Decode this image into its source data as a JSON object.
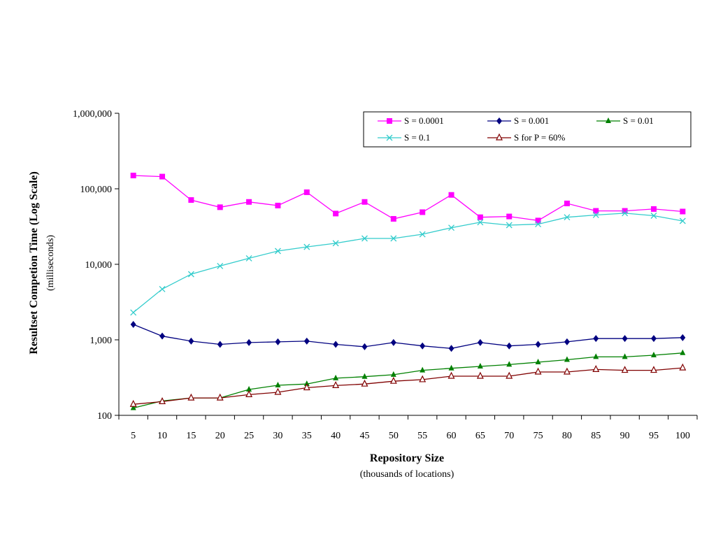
{
  "chart_data": {
    "type": "line",
    "title": "",
    "xlabel": "Repository Size",
    "xlabel_sub": "(thousands of locations)",
    "ylabel": "Resultset Competion Time (Log Scale)",
    "ylabel_sub": "(milliseconds)",
    "y_scale": "log",
    "ylim": [
      100,
      1000000
    ],
    "y_ticks": [
      100,
      1000,
      10000,
      100000,
      1000000
    ],
    "y_tick_labels": [
      "100",
      "1,000",
      "10,000",
      "100,000",
      "1,000,000"
    ],
    "categories": [
      "5",
      "10",
      "15",
      "20",
      "25",
      "30",
      "35",
      "40",
      "45",
      "50",
      "55",
      "60",
      "65",
      "70",
      "75",
      "80",
      "85",
      "90",
      "95",
      "100"
    ],
    "grid": false,
    "legend_position": "top-right",
    "series": [
      {
        "name": "S = 0.0001",
        "color": "#FF00FF",
        "marker": "square",
        "values": [
          150000,
          145000,
          71000,
          57000,
          67000,
          60000,
          90000,
          47000,
          67000,
          40000,
          49000,
          83000,
          42000,
          43000,
          38000,
          64000,
          51000,
          51000,
          54000,
          50000
        ]
      },
      {
        "name": "S = 0.001",
        "color": "#000080",
        "marker": "diamond",
        "values": [
          1600,
          1120,
          960,
          870,
          920,
          940,
          960,
          870,
          810,
          920,
          830,
          770,
          920,
          830,
          870,
          940,
          1040,
          1040,
          1040,
          1070
        ]
      },
      {
        "name": "S = 0.01",
        "color": "#008000",
        "marker": "triangle",
        "values": [
          125,
          155,
          170,
          170,
          220,
          250,
          260,
          310,
          325,
          345,
          395,
          420,
          445,
          470,
          505,
          545,
          595,
          595,
          625,
          670
        ]
      },
      {
        "name": "S = 0.1",
        "color": "#33CCCC",
        "marker": "x",
        "values": [
          2300,
          4700,
          7400,
          9500,
          12000,
          15000,
          17000,
          19000,
          22000,
          22000,
          25000,
          30500,
          36000,
          33000,
          34000,
          42000,
          45000,
          47500,
          44000,
          37500
        ]
      },
      {
        "name": "S for P = 60%",
        "color": "#800000",
        "marker": "open-triangle",
        "values": [
          140,
          152,
          170,
          170,
          188,
          202,
          232,
          248,
          260,
          283,
          297,
          330,
          330,
          330,
          375,
          375,
          405,
          395,
          395,
          425
        ]
      }
    ]
  }
}
